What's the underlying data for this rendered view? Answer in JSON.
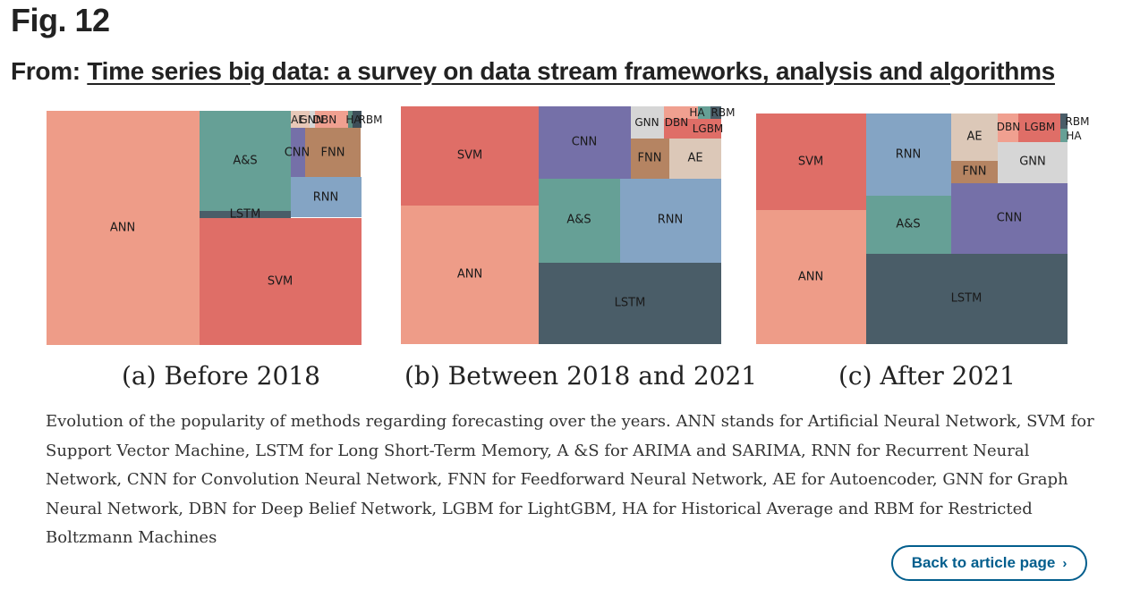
{
  "header": {
    "fig_label": "Fig. 12",
    "from_prefix": "From: ",
    "article_title": "Time series big data: a survey on data stream frameworks, analysis and algorithms"
  },
  "chart_data": [
    {
      "type": "treemap",
      "caption": "(a) Before 2018",
      "cells": [
        {
          "label": "ANN",
          "color": "#ee9c88"
        },
        {
          "label": "A&S",
          "color": "#66a096"
        },
        {
          "label": "LSTM",
          "color": "#4a5d68"
        },
        {
          "label": "SVM",
          "color": "#df6e67"
        },
        {
          "label": "CNN",
          "color": "#7570a8"
        },
        {
          "label": "FNN",
          "color": "#b58462"
        },
        {
          "label": "RNN",
          "color": "#84a4c4"
        },
        {
          "label": "AE",
          "color": "#e8c8b8"
        },
        {
          "label": "GNN",
          "color": "#d6d6d6"
        },
        {
          "label": "DBN",
          "color": "#f0a090"
        },
        {
          "label": "HA",
          "color": "#5c8d80"
        },
        {
          "label": "RBM",
          "color": "#3e4e58"
        }
      ]
    },
    {
      "type": "treemap",
      "caption": "(b) Between 2018 and 2021",
      "cells": [
        {
          "label": "SVM",
          "color": "#df6e67"
        },
        {
          "label": "ANN",
          "color": "#ee9c88"
        },
        {
          "label": "CNN",
          "color": "#7570a8"
        },
        {
          "label": "GNN",
          "color": "#d6d6d6"
        },
        {
          "label": "DBN",
          "color": "#f0a090"
        },
        {
          "label": "HA",
          "color": "#66a096"
        },
        {
          "label": "RBM",
          "color": "#4a5d68"
        },
        {
          "label": "LGBM",
          "color": "#df6e67"
        },
        {
          "label": "FNN",
          "color": "#b58462"
        },
        {
          "label": "AE",
          "color": "#dcc8b8"
        },
        {
          "label": "A&S",
          "color": "#66a096"
        },
        {
          "label": "RNN",
          "color": "#84a4c4"
        },
        {
          "label": "LSTM",
          "color": "#4a5d68"
        }
      ]
    },
    {
      "type": "treemap",
      "caption": "(c) After 2021",
      "cells": [
        {
          "label": "SVM",
          "color": "#df6e67"
        },
        {
          "label": "ANN",
          "color": "#ee9c88"
        },
        {
          "label": "RNN",
          "color": "#84a4c4"
        },
        {
          "label": "A&S",
          "color": "#66a096"
        },
        {
          "label": "AE",
          "color": "#dcc8b8"
        },
        {
          "label": "FNN",
          "color": "#b58462"
        },
        {
          "label": "DBN",
          "color": "#f0a090"
        },
        {
          "label": "LGBM",
          "color": "#df6e67"
        },
        {
          "label": "GNN",
          "color": "#d6d6d6"
        },
        {
          "label": "RBM",
          "color": "#4a5d68"
        },
        {
          "label": "HA",
          "color": "#66a096"
        },
        {
          "label": "CNN",
          "color": "#7570a8"
        },
        {
          "label": "LSTM",
          "color": "#4a5d68"
        }
      ]
    }
  ],
  "caption_text": "Evolution of the popularity of methods regarding forecasting over the years. ANN stands for Artificial Neural Network, SVM for Support Vector Machine, LSTM for Long Short-Term Memory, A &S for ARIMA and SARIMA, RNN for Recurrent Neural Network, CNN for Convolution Neural Network, FNN for Feedforward Neural Network, AE for Autoencoder, GNN for Graph Neural Network, DBN for Deep Belief Network, LGBM for LightGBM, HA for Historical Average and RBM for Restricted Boltzmann Machines",
  "back_button": {
    "label": "Back to article page",
    "icon": "chevron-right-icon"
  }
}
